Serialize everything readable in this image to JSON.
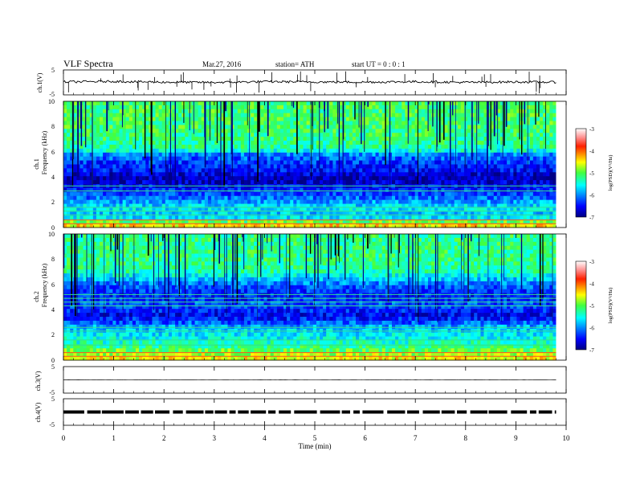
{
  "header": {
    "title": "VLF  Spectra",
    "date": "Mar.27, 2016",
    "station": "station= ATH",
    "start": "start  UT =   0 : 0  : 1"
  },
  "x_axis": {
    "label": "Time  (min)",
    "ticks": [
      "0",
      "1",
      "2",
      "3",
      "4",
      "5",
      "6",
      "7",
      "8",
      "9",
      "10"
    ]
  },
  "panels": {
    "ch1_wave": {
      "ylabel": "ch.1(V)",
      "ticks": [
        "5",
        "-5"
      ]
    },
    "ch1_spec": {
      "ylabel_top": "ch.1",
      "ylabel": "Frequency  (kHz)",
      "ticks": [
        "10",
        "8",
        "6",
        "4",
        "2",
        "0"
      ]
    },
    "ch2_spec": {
      "ylabel_top": "ch.2",
      "ylabel": "Frequency  (kHz)",
      "ticks": [
        "10",
        "8",
        "6",
        "4",
        "2",
        "0"
      ]
    },
    "ch3_wave": {
      "ylabel": "ch.3(V)",
      "ticks": [
        "5",
        "-5"
      ]
    },
    "ch4_wave": {
      "ylabel": "ch.4(V)",
      "ticks": [
        "5",
        "-5"
      ]
    }
  },
  "colorbar": {
    "label": "log(PSD)(V²/Hz)",
    "ticks": [
      "-3",
      "-4",
      "-5",
      "-6",
      "-7"
    ]
  },
  "chart_data": [
    {
      "type": "line",
      "panel": "ch.1(V)",
      "xlabel": "Time  (min)",
      "ylabel": "ch.1(V)",
      "xlim": [
        0,
        10
      ],
      "ylim": [
        -5,
        5
      ],
      "x": [
        0,
        1,
        2,
        3,
        4,
        5,
        6,
        7,
        8,
        9,
        9.8
      ],
      "values": [
        0.2,
        0.4,
        0.1,
        0.0,
        0.3,
        0.2,
        0.1,
        0.3,
        0.0,
        0.2,
        0.1
      ]
    },
    {
      "type": "heatmap",
      "panel": "ch.1",
      "xlabel": "Time  (min)",
      "ylabel": "Frequency  (kHz)",
      "xlim": [
        0,
        10
      ],
      "ylim": [
        0,
        10
      ],
      "data_xmax": 9.8,
      "colorbar_label": "log(PSD)(V²/Hz)",
      "colorbar_range": [
        -7,
        -3
      ],
      "freq_profile": [
        [
          0,
          -4.6
        ],
        [
          0.3,
          -4.3
        ],
        [
          0.6,
          -5.5
        ],
        [
          1,
          -5.8
        ],
        [
          1.5,
          -5.6
        ],
        [
          2,
          -5.9
        ],
        [
          2.5,
          -6.2
        ],
        [
          3,
          -6.4
        ],
        [
          3.5,
          -6.7
        ],
        [
          4,
          -6.8
        ],
        [
          4.5,
          -6.5
        ],
        [
          5,
          -6.4
        ],
        [
          5.8,
          -6.0
        ],
        [
          6.2,
          -5.3
        ],
        [
          7,
          -5.2
        ],
        [
          8,
          -5.1
        ],
        [
          9,
          -5.1
        ],
        [
          10,
          -5.1
        ]
      ],
      "lines_khz": [
        0.3,
        0.6,
        1.0,
        1.3,
        1.6,
        2.9,
        3.3
      ]
    },
    {
      "type": "heatmap",
      "panel": "ch.2",
      "xlabel": "Time  (min)",
      "ylabel": "Frequency  (kHz)",
      "xlim": [
        0,
        10
      ],
      "ylim": [
        0,
        10
      ],
      "data_xmax": 9.8,
      "colorbar_label": "log(PSD)(V²/Hz)",
      "colorbar_range": [
        -7,
        -3
      ],
      "freq_profile": [
        [
          0,
          -4.4
        ],
        [
          0.4,
          -4.7
        ],
        [
          0.8,
          -5.0
        ],
        [
          1.2,
          -5.3
        ],
        [
          1.6,
          -5.5
        ],
        [
          2,
          -5.6
        ],
        [
          2.5,
          -5.8
        ],
        [
          3,
          -6.2
        ],
        [
          3.5,
          -6.6
        ],
        [
          4,
          -6.4
        ],
        [
          4.5,
          -6.2
        ],
        [
          5,
          -6.5
        ],
        [
          5.5,
          -6.3
        ],
        [
          6,
          -6.1
        ],
        [
          7,
          -5.3
        ],
        [
          8,
          -5.2
        ],
        [
          9,
          -5.2
        ],
        [
          10,
          -5.2
        ]
      ],
      "lines_khz": [
        0.3,
        0.6,
        1.2,
        1.6,
        2.3,
        2.6,
        4.3,
        4.6,
        4.9,
        5.2
      ]
    },
    {
      "type": "line",
      "panel": "ch.3(V)",
      "xlabel": "Time  (min)",
      "ylabel": "ch.3(V)",
      "xlim": [
        0,
        10
      ],
      "ylim": [
        -5,
        5
      ],
      "x": [
        0,
        9.8
      ],
      "values": [
        0,
        0
      ]
    },
    {
      "type": "line",
      "panel": "ch.4(V)",
      "xlabel": "Time  (min)",
      "ylabel": "ch.4(V)",
      "xlim": [
        0,
        10
      ],
      "ylim": [
        -5,
        5
      ],
      "x": [
        0,
        9.8
      ],
      "values": [
        0,
        0
      ]
    }
  ]
}
